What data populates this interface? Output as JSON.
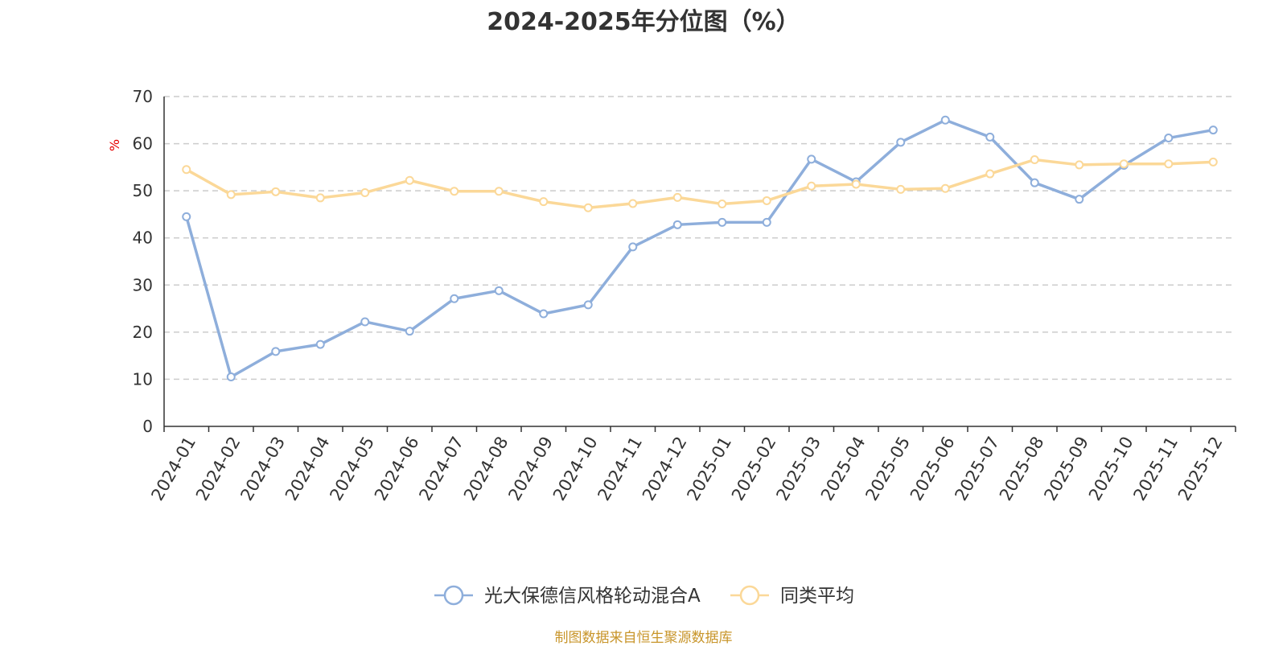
{
  "title": "2024-2025年分位图（%）",
  "footer": "制图数据来自恒生聚源数据库",
  "chart_data": {
    "type": "line",
    "title": "2024-2025年分位图（%）",
    "ylabel": "%",
    "xlabel": "",
    "ylim": [
      0,
      70
    ],
    "yticks": [
      0,
      10,
      20,
      30,
      40,
      50,
      60,
      70
    ],
    "grid": true,
    "legend_position": "bottom",
    "categories": [
      "2024-01",
      "2024-02",
      "2024-03",
      "2024-04",
      "2024-05",
      "2024-06",
      "2024-07",
      "2024-08",
      "2024-09",
      "2024-10",
      "2024-11",
      "2024-12",
      "2025-01",
      "2025-02",
      "2025-03",
      "2025-04",
      "2025-05",
      "2025-06",
      "2025-07",
      "2025-08",
      "2025-09",
      "2025-10",
      "2025-11",
      "2025-12"
    ],
    "series": [
      {
        "name": "光大保德信风格轮动混合A",
        "color": "#8eaedb",
        "values": [
          44.5,
          10.5,
          15.9,
          17.4,
          22.2,
          20.2,
          27.1,
          28.8,
          23.9,
          25.8,
          38.1,
          42.8,
          43.3,
          43.3,
          56.7,
          51.9,
          60.3,
          65.0,
          61.4,
          51.7,
          48.2,
          55.4,
          61.2,
          62.9
        ]
      },
      {
        "name": "同类平均",
        "color": "#fbd898",
        "values": [
          54.5,
          49.2,
          49.8,
          48.5,
          49.6,
          52.2,
          49.9,
          49.9,
          47.7,
          46.4,
          47.3,
          48.6,
          47.2,
          47.9,
          51.0,
          51.4,
          50.3,
          50.5,
          53.6,
          56.6,
          55.5,
          55.7,
          55.7,
          56.1
        ]
      }
    ]
  }
}
